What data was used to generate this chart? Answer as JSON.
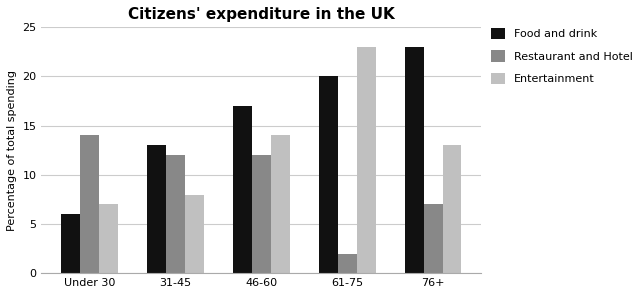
{
  "title": "Citizens' expenditure in the UK",
  "ylabel": "Percentage of total spending",
  "categories": [
    "Under 30",
    "31-45",
    "46-60",
    "61-75",
    "76+"
  ],
  "series": [
    {
      "label": "Food and drink",
      "values": [
        6,
        13,
        17,
        20,
        23
      ],
      "color": "#111111"
    },
    {
      "label": "Restaurant and Hotel",
      "values": [
        14,
        12,
        12,
        2,
        7
      ],
      "color": "#888888"
    },
    {
      "label": "Entertainment",
      "values": [
        7,
        8,
        14,
        23,
        13
      ],
      "color": "#c0c0c0"
    }
  ],
  "ylim": [
    0,
    25
  ],
  "yticks": [
    0,
    5,
    10,
    15,
    20,
    25
  ],
  "bar_width": 0.22,
  "background_color": "#ffffff",
  "plot_bg_color": "#ffffff",
  "grid_color": "#cccccc",
  "title_fontsize": 11,
  "axis_fontsize": 8,
  "legend_fontsize": 8,
  "tick_fontsize": 8
}
